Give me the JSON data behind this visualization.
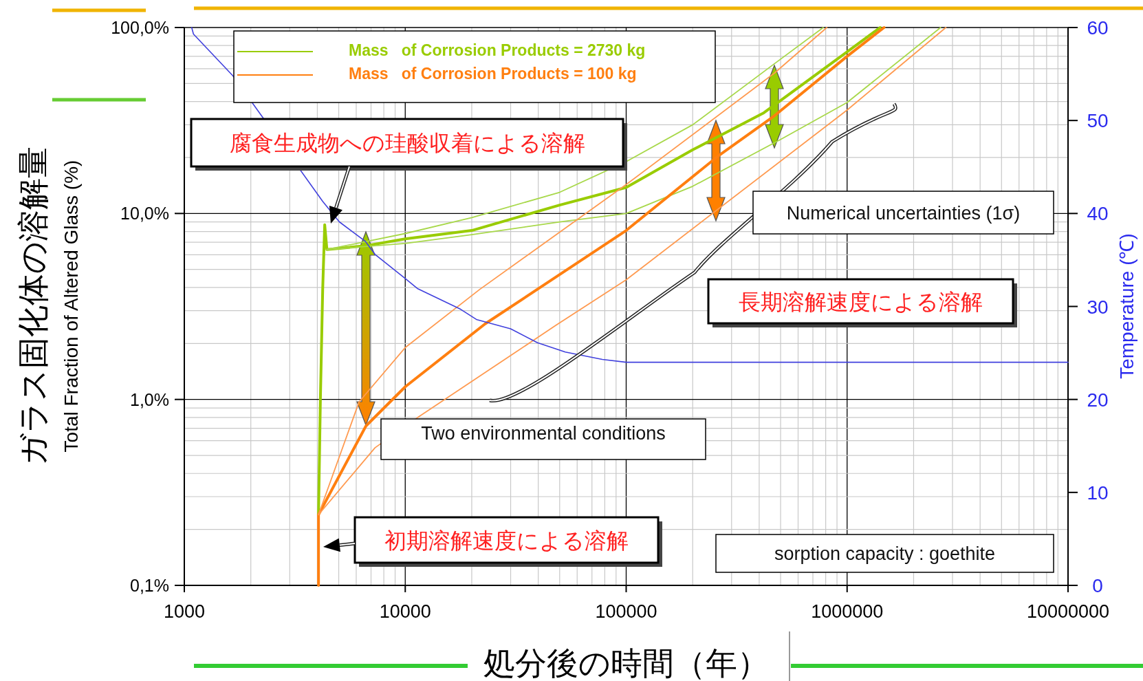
{
  "chart_data": {
    "type": "line",
    "xlabel": "処分後の時間（年）",
    "ylabel": "Total Fraction of Altered Glass (%)",
    "y2label": "Temperature (℃)",
    "log": "xy",
    "xlim": [
      1000,
      10000000
    ],
    "xticks": [
      1000,
      10000,
      100000,
      1000000,
      10000000
    ],
    "ylim": [
      0.1,
      100
    ],
    "yticks": [
      {
        "value": 0.1,
        "label": "0,1%"
      },
      {
        "value": 1,
        "label": "1,0%"
      },
      {
        "value": 10,
        "label": "10,0%"
      },
      {
        "value": 100,
        "label": "100,0%"
      }
    ],
    "y2lim": [
      0,
      60
    ],
    "y2ticks": [
      0,
      10,
      20,
      30,
      40,
      50,
      60
    ],
    "grid": true,
    "legend": "top",
    "series": [
      {
        "name": "Mass   of Corrosion Products = 2730 kg",
        "color": "#99cc00",
        "x": [
          4050,
          4130,
          4230,
          4320,
          4420,
          6600,
          10000,
          20000,
          50000,
          100000,
          200000,
          420000,
          1000000,
          1410000
        ],
        "values": [
          0.24,
          1.0,
          3.9,
          8.7,
          6.4,
          6.7,
          7.3,
          8.1,
          11.1,
          13.8,
          22,
          34.8,
          74,
          100
        ]
      },
      {
        "color": "#a8d84a",
        "x": [
          4420,
          10000,
          20000,
          50000,
          100000,
          200000,
          470000,
          780000
        ],
        "values": [
          6.4,
          7.8,
          9.5,
          13,
          19,
          30,
          64,
          100
        ]
      },
      {
        "color": "#a8d84a",
        "x": [
          4420,
          10000,
          20000,
          50000,
          100000,
          200000,
          500000,
          1000000,
          2650000
        ],
        "values": [
          6.4,
          6.9,
          7.7,
          9,
          10,
          14,
          25,
          39.5,
          100
        ]
      },
      {
        "name": "Mass   of Corrosion Products = 100 kg",
        "color": "#ff7f10",
        "x": [
          4050,
          4050,
          6640,
          10000,
          23000,
          100000,
          260000,
          470000,
          1000000,
          1470000
        ],
        "values": [
          0.1,
          0.24,
          0.72,
          1.17,
          2.55,
          8.1,
          20.3,
          33.6,
          70,
          100
        ]
      },
      {
        "color": "#ff9a50",
        "x": [
          4050,
          6180,
          10000,
          21700,
          100000,
          470000,
          810000
        ],
        "values": [
          0.24,
          0.97,
          1.9,
          3.9,
          14.3,
          57,
          100
        ]
      },
      {
        "color": "#ff9a50",
        "x": [
          4050,
          7300,
          11400,
          48000,
          100000,
          1000000,
          2800000
        ],
        "values": [
          0.24,
          0.55,
          0.8,
          2.5,
          4.4,
          36,
          100
        ]
      },
      {
        "color": "#4040dd",
        "axis": "y2",
        "x": [
          1080,
          1100,
          1660,
          2300,
          4230,
          5030,
          6600,
          7300,
          10000,
          11400,
          17800,
          21000,
          30000,
          39700,
          53000,
          78000,
          100000,
          10000000
        ],
        "values": [
          60,
          59.3,
          54.8,
          50.1,
          41.3,
          39.1,
          37.0,
          35.6,
          33.0,
          31.9,
          29.7,
          28.6,
          27.6,
          26.1,
          25.1,
          24.3,
          24.0,
          24.0
        ]
      }
    ],
    "annotations": [
      "腐食生成物への珪酸収着による溶解",
      "長期溶解速度による溶解",
      "初期溶解速度による溶解",
      "Numerical uncertainties (1σ)",
      "Two environmental conditions",
      "sorption capacity : goethite",
      "ガラス固化体の溶解量"
    ]
  }
}
